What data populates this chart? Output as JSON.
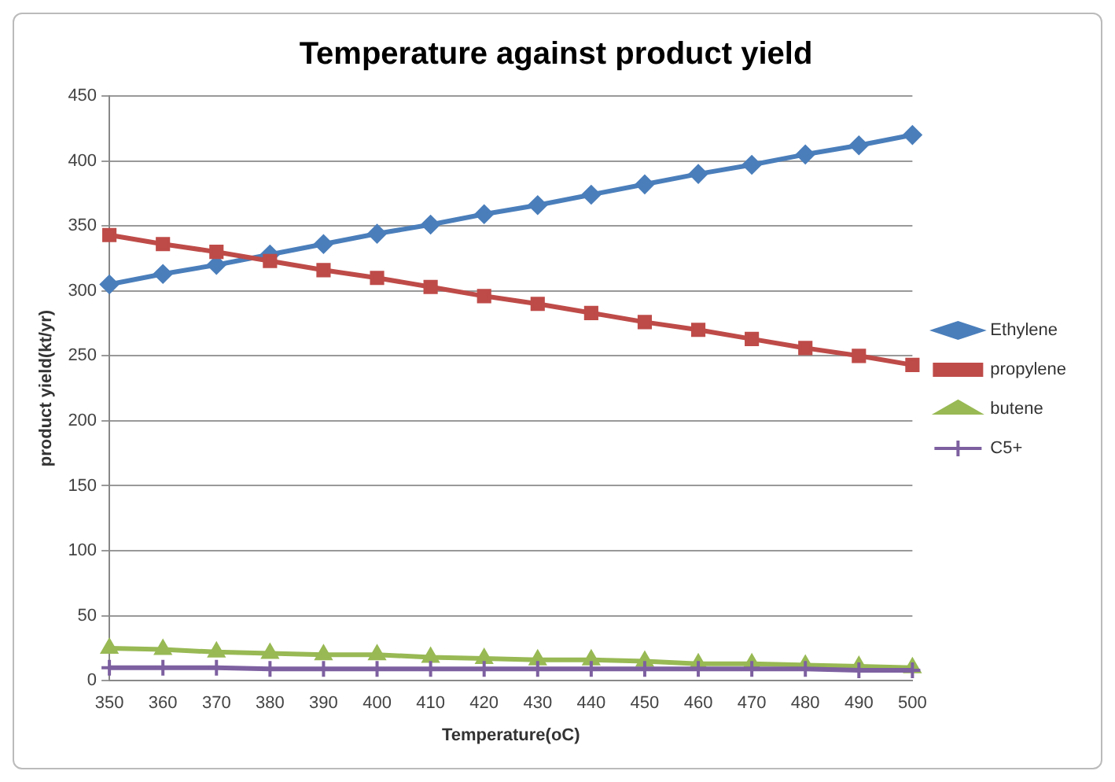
{
  "chart_data": {
    "type": "line",
    "title": "Temperature against product yield",
    "xlabel": "Temperature(oC)",
    "ylabel": "product yield(kt/yr)",
    "categories": [
      "350",
      "360",
      "370",
      "380",
      "390",
      "400",
      "410",
      "420",
      "430",
      "440",
      "450",
      "460",
      "470",
      "480",
      "490",
      "500"
    ],
    "series": [
      {
        "name": "Ethylene",
        "color": "#4a7ebb",
        "marker": "diamond",
        "values": [
          305,
          313,
          320,
          328,
          336,
          344,
          351,
          359,
          366,
          374,
          382,
          390,
          397,
          405,
          412,
          420
        ]
      },
      {
        "name": "propylene",
        "color": "#be4b48",
        "marker": "square",
        "values": [
          343,
          336,
          330,
          323,
          316,
          310,
          303,
          296,
          290,
          283,
          276,
          270,
          263,
          256,
          250,
          243
        ]
      },
      {
        "name": "butene",
        "color": "#98b954",
        "marker": "triangle",
        "values": [
          25,
          24,
          22,
          21,
          20,
          20,
          18,
          17,
          16,
          16,
          15,
          13,
          13,
          12,
          11,
          10
        ]
      },
      {
        "name": "C5+",
        "color": "#7d60a0",
        "marker": "cross",
        "values": [
          10,
          10,
          10,
          9,
          9,
          9,
          9,
          9,
          9,
          9,
          9,
          9,
          9,
          9,
          8,
          8
        ]
      }
    ],
    "ylim": [
      0,
      450
    ],
    "yticks": [
      0,
      50,
      100,
      150,
      200,
      250,
      300,
      350,
      400,
      450
    ],
    "grid": "y",
    "legend": "right",
    "line_style": "solid"
  }
}
